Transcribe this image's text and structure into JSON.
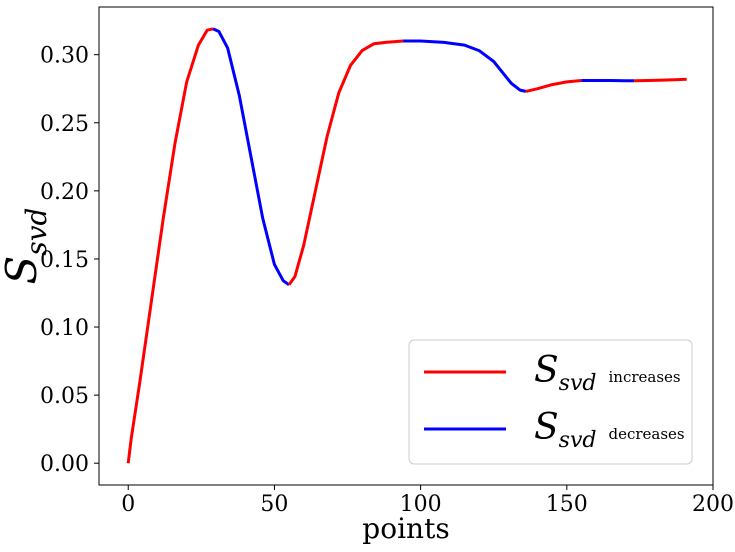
{
  "chart_data": {
    "type": "line",
    "title": "",
    "xlabel": "points",
    "ylabel_main": "S",
    "ylabel_sub": "svd",
    "xlim": [
      -10,
      200
    ],
    "ylim": [
      -0.016,
      0.335
    ],
    "grid": false,
    "legend_placement": "lower-right",
    "x_ticks": [
      0,
      50,
      100,
      150,
      200
    ],
    "x_tick_labels": [
      "0",
      "50",
      "100",
      "150",
      "200"
    ],
    "y_ticks": [
      0.0,
      0.05,
      0.1,
      0.15,
      0.2,
      0.25,
      0.3
    ],
    "y_tick_labels": [
      "0.00",
      "0.05",
      "0.10",
      "0.15",
      "0.20",
      "0.25",
      "0.30"
    ],
    "colors": {
      "increase": "#ff0000",
      "decrease": "#0000ff"
    },
    "legend": [
      {
        "main": "S",
        "sub": "svd",
        "note": "increases",
        "color": "#ff0000"
      },
      {
        "main": "S",
        "sub": "svd",
        "note": "decreases",
        "color": "#0000ff"
      }
    ],
    "series": [
      {
        "color": "#ff0000",
        "x": [
          0,
          1,
          4,
          8,
          12,
          16,
          20,
          24,
          27,
          29
        ],
        "y": [
          0.0,
          0.018,
          0.06,
          0.12,
          0.18,
          0.235,
          0.28,
          0.307,
          0.318,
          0.319
        ]
      },
      {
        "color": "#0000ff",
        "x": [
          29,
          31,
          34,
          38,
          42,
          46,
          50,
          53,
          55
        ],
        "y": [
          0.319,
          0.317,
          0.305,
          0.27,
          0.225,
          0.18,
          0.146,
          0.134,
          0.131
        ]
      },
      {
        "color": "#ff0000",
        "x": [
          55,
          57,
          60,
          64,
          68,
          72,
          76,
          80,
          84,
          88,
          94
        ],
        "y": [
          0.131,
          0.137,
          0.16,
          0.2,
          0.24,
          0.272,
          0.292,
          0.303,
          0.308,
          0.309,
          0.31
        ]
      },
      {
        "color": "#0000ff",
        "x": [
          94,
          100,
          108,
          115,
          120,
          125,
          128,
          131,
          134,
          136
        ],
        "y": [
          0.31,
          0.31,
          0.309,
          0.307,
          0.303,
          0.295,
          0.287,
          0.279,
          0.274,
          0.273
        ]
      },
      {
        "color": "#ff0000",
        "x": [
          136,
          140,
          145,
          150,
          155
        ],
        "y": [
          0.273,
          0.275,
          0.278,
          0.28,
          0.281
        ]
      },
      {
        "color": "#0000ff",
        "x": [
          155,
          160,
          165,
          170,
          173
        ],
        "y": [
          0.281,
          0.281,
          0.281,
          0.2808,
          0.2808
        ]
      },
      {
        "color": "#ff0000",
        "x": [
          173,
          178,
          183,
          188,
          191
        ],
        "y": [
          0.2808,
          0.281,
          0.2813,
          0.2817,
          0.282
        ]
      }
    ]
  }
}
